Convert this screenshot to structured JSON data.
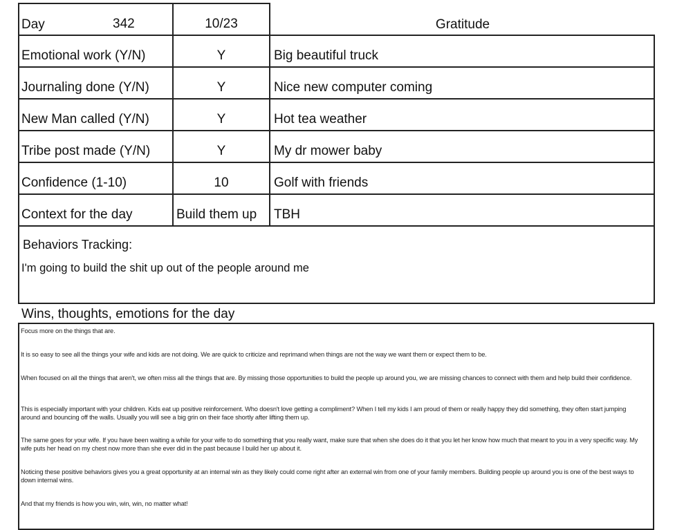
{
  "header": {
    "day_label": "Day",
    "day_number": "342",
    "date": "10/23",
    "gratitude_title": "Gratitude"
  },
  "rows": [
    {
      "label": "Emotional work  (Y/N)",
      "value": "Y",
      "gratitude": "Big beautiful truck"
    },
    {
      "label": "Journaling done (Y/N)",
      "value": "Y",
      "gratitude": "Nice new computer coming"
    },
    {
      "label": "New Man called (Y/N)",
      "value": "Y",
      "gratitude": "Hot tea weather"
    },
    {
      "label": "Tribe post made (Y/N)",
      "value": "Y",
      "gratitude": "My dr mower baby"
    },
    {
      "label": "Confidence (1-10)",
      "value": "10",
      "gratitude": "Golf with friends"
    },
    {
      "label": "Context for the day",
      "value": "Build them up",
      "gratitude": "TBH"
    }
  ],
  "behaviors": {
    "title": "Behaviors Tracking:",
    "text": "I'm going to build the shit up out of the people around me"
  },
  "wins": {
    "title": "Wins, thoughts, emotions for the day",
    "paragraphs": [
      "Focus more on the things that are.",
      "It is so easy to see all the things your wife and kids are not doing.  We are quick to criticize and reprimand when things are not the way we want them or expect them to be.",
      "When focused on all the things that aren't, we often miss all the things that are.  By missing those opportunities to build the people up around you, we are missing chances to connect with them and help build their confidence.",
      "This is especially important with your children.  Kids eat up positive reinforcement.  Who doesn't love getting a compliment?  When I tell my kids I am proud of them or really happy they did something, they often start jumping around and bouncing off the walls.  Usually you will see a big grin on their face shortly after lifting them up.",
      "The same goes for your wife.  If you have been waiting a while for your wife to do something that you really want, make sure that when she does do it that you let her know how much that meant to you in a very specific way.  My wife puts her head on my chest now more than she ever did in the past because I build her up about it.",
      "Noticing these positive behaviors gives you a great opportunity at an internal win as they likely could come right after an external win from one of your family members.  Building people up around you is one of the best ways to down internal wins.",
      "And that my friends is how you win, win, win, no matter what!"
    ]
  }
}
